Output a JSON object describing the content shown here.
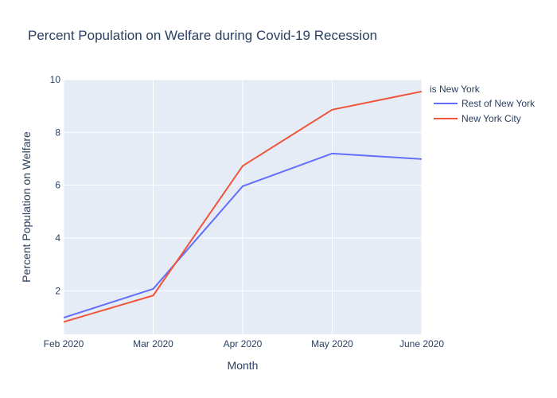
{
  "chart_data": {
    "type": "line",
    "title": "Percent Population on Welfare during Covid-19 Recession",
    "xlabel": "Month",
    "ylabel": "Percent Population on Welfare",
    "categories": [
      "Feb 2020",
      "Mar 2020",
      "Apr 2020",
      "May 2020",
      "June 2020"
    ],
    "ylim": [
      0.35,
      10
    ],
    "yticks": [
      2,
      4,
      6,
      8,
      10
    ],
    "grid": true,
    "legend": {
      "title": "is New York",
      "placement": "right"
    },
    "series": [
      {
        "name": "Rest of New York",
        "color": "#636efa",
        "values": [
          0.98,
          2.07,
          5.96,
          7.2,
          6.99
        ]
      },
      {
        "name": "New York City",
        "color": "#ef553b",
        "values": [
          0.82,
          1.82,
          6.73,
          8.86,
          9.55
        ]
      }
    ]
  }
}
